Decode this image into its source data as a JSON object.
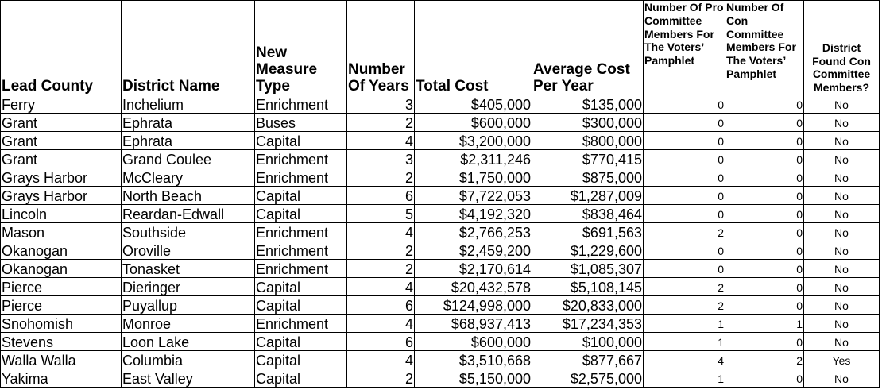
{
  "headers": [
    "Lead County",
    "District Name",
    "New Measure Type",
    "Number Of Years",
    "Total Cost",
    "Average Cost Per Year",
    "Number Of Pro Committee Members For The Voters’ Pamphlet",
    "Number Of Con Committee Members For The Voters’ Pamphlet",
    "District Found Con Committee Members?"
  ],
  "rows": [
    [
      "Ferry",
      "Inchelium",
      "Enrichment",
      "3",
      "$405,000",
      "$135,000",
      "0",
      "0",
      "No"
    ],
    [
      "Grant",
      "Ephrata",
      "Buses",
      "2",
      "$600,000",
      "$300,000",
      "0",
      "0",
      "No"
    ],
    [
      "Grant",
      "Ephrata",
      "Capital",
      "4",
      "$3,200,000",
      "$800,000",
      "0",
      "0",
      "No"
    ],
    [
      "Grant",
      "Grand Coulee",
      "Enrichment",
      "3",
      "$2,311,246",
      "$770,415",
      "0",
      "0",
      "No"
    ],
    [
      "Grays Harbor",
      "McCleary",
      "Enrichment",
      "2",
      "$1,750,000",
      "$875,000",
      "0",
      "0",
      "No"
    ],
    [
      "Grays Harbor",
      "North Beach",
      "Capital",
      "6",
      "$7,722,053",
      "$1,287,009",
      "0",
      "0",
      "No"
    ],
    [
      "Lincoln",
      "Reardan-Edwall",
      "Capital",
      "5",
      "$4,192,320",
      "$838,464",
      "0",
      "0",
      "No"
    ],
    [
      "Mason",
      "Southside",
      "Enrichment",
      "4",
      "$2,766,253",
      "$691,563",
      "2",
      "0",
      "No"
    ],
    [
      "Okanogan",
      "Oroville",
      "Enrichment",
      "2",
      "$2,459,200",
      "$1,229,600",
      "0",
      "0",
      "No"
    ],
    [
      "Okanogan",
      "Tonasket",
      "Enrichment",
      "2",
      "$2,170,614",
      "$1,085,307",
      "0",
      "0",
      "No"
    ],
    [
      "Pierce",
      "Dieringer",
      "Capital",
      "4",
      "$20,432,578",
      "$5,108,145",
      "2",
      "0",
      "No"
    ],
    [
      "Pierce",
      "Puyallup",
      "Capital",
      "6",
      "$124,998,000",
      "$20,833,000",
      "2",
      "0",
      "No"
    ],
    [
      "Snohomish",
      "Monroe",
      "Enrichment",
      "4",
      "$68,937,413",
      "$17,234,353",
      "1",
      "1",
      "No"
    ],
    [
      "Stevens",
      "Loon Lake",
      "Capital",
      "6",
      "$600,000",
      "$100,000",
      "1",
      "0",
      "No"
    ],
    [
      "Walla Walla",
      "Columbia",
      "Capital",
      "4",
      "$3,510,668",
      "$877,667",
      "4",
      "2",
      "Yes"
    ],
    [
      "Yakima",
      "East Valley",
      "Capital",
      "2",
      "$5,150,000",
      "$2,575,000",
      "1",
      "0",
      "No"
    ]
  ]
}
